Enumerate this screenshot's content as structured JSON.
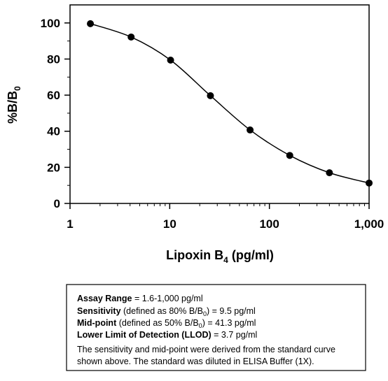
{
  "chart_data": {
    "type": "scatter",
    "xscale": "log",
    "curve": true,
    "y_label": {
      "text": "%B/B",
      "sub": "0"
    },
    "x_label": {
      "text": "Lipoxin B",
      "sub": "4",
      "tail": " (pg/ml)"
    },
    "x": [
      1.6,
      4.1,
      10.2,
      25.6,
      64,
      160,
      400,
      1000
    ],
    "values": [
      99.6,
      92.2,
      79.4,
      59.7,
      40.7,
      26.6,
      17.0,
      11.3
    ],
    "color": "#000000",
    "xlim": [
      1,
      1000
    ],
    "xticks": [
      1,
      10,
      100,
      {
        "value": 1000,
        "label": "1,000"
      }
    ],
    "xminor_ticks": [
      2,
      3,
      4,
      5,
      6,
      7,
      8,
      9,
      20,
      30,
      40,
      50,
      60,
      70,
      80,
      90,
      200,
      300,
      400,
      500,
      600,
      700,
      800,
      900
    ],
    "ylim": [
      0,
      110
    ],
    "yticks": [
      0,
      20,
      40,
      60,
      80,
      100
    ],
    "yminor_ticks": [
      10,
      30,
      50,
      70,
      90
    ]
  },
  "info_box": {
    "lines": [
      {
        "bold": "Assay Range",
        "text": " = 1.6-1,000 pg/ml"
      },
      {
        "bold": "Sensitivity",
        "text": " (defined as 80% B/B",
        "sub": "0",
        "tail": ")  =  9.5 pg/ml"
      },
      {
        "bold": "Mid-point",
        "text": " (defined as 50% B/B",
        "sub": "0",
        "tail": ")  =  41.3 pg/ml"
      },
      {
        "bold": "Lower Limit of Detection (LLOD)",
        "text": " =  3.7 pg/ml"
      },
      {
        "text": "The sensitivity and mid-point were derived from the standard curve"
      },
      {
        "text": "shown above. The standard was diluted in ELISA Buffer (1X)."
      }
    ]
  }
}
